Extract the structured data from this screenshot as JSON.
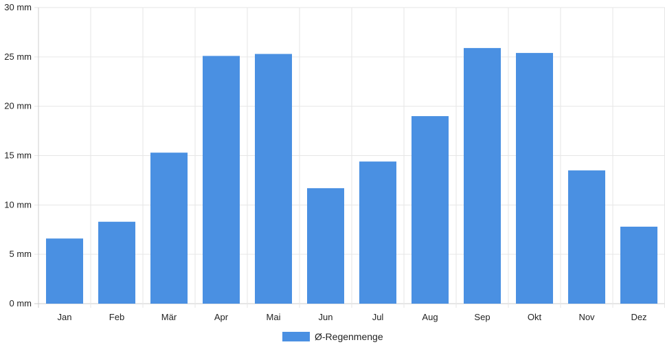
{
  "chart_data": {
    "type": "bar",
    "categories": [
      "Jan",
      "Feb",
      "Mär",
      "Apr",
      "Mai",
      "Jun",
      "Jul",
      "Aug",
      "Sep",
      "Okt",
      "Nov",
      "Dez"
    ],
    "series": [
      {
        "name": "Ø-Regenmenge",
        "values": [
          6.6,
          8.3,
          15.3,
          25.1,
          25.3,
          11.7,
          14.4,
          19.0,
          25.9,
          25.4,
          13.5,
          7.8
        ]
      }
    ],
    "y_ticks": [
      "0 mm",
      "5 mm",
      "10 mm",
      "15 mm",
      "20 mm",
      "25 mm",
      "30 mm"
    ],
    "ylim": [
      0,
      30
    ],
    "y_unit": "mm",
    "grid": true,
    "legend_position": "bottom",
    "title": "",
    "xlabel": "",
    "ylabel": "",
    "colors": {
      "bar": "#4a90e2",
      "grid": "#e6e6e6",
      "axis": "#cccccc"
    }
  }
}
